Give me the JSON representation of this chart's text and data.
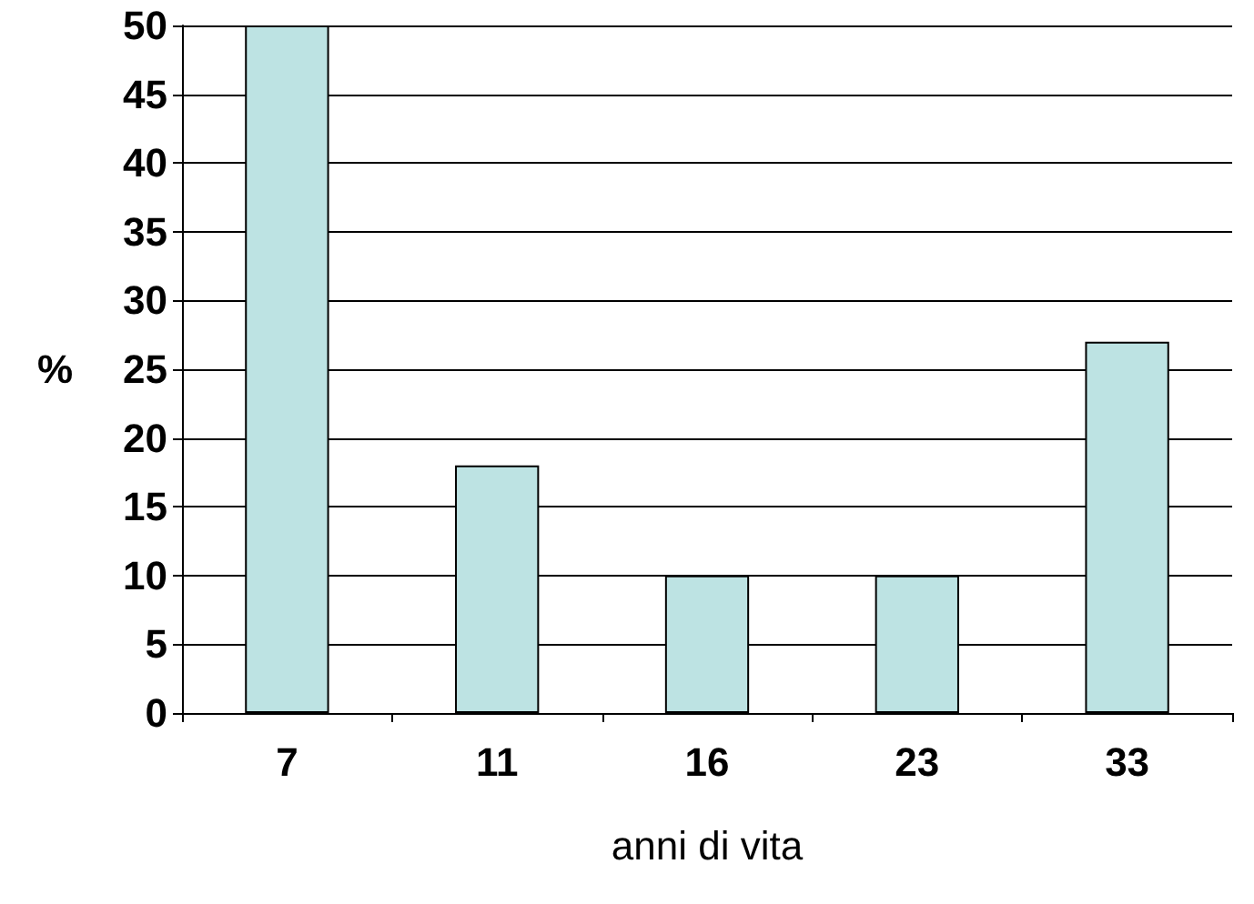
{
  "chart_data": {
    "type": "bar",
    "xlabel": "anni di vita",
    "ylabel": "%",
    "categories": [
      "7",
      "11",
      "16",
      "23",
      "33"
    ],
    "values": [
      50,
      18,
      10,
      10,
      27
    ],
    "color": "#bde3e3",
    "ylim": [
      0,
      50
    ],
    "yticks": [
      0,
      5,
      10,
      15,
      20,
      25,
      30,
      35,
      40,
      45,
      50
    ],
    "grid": "y"
  }
}
